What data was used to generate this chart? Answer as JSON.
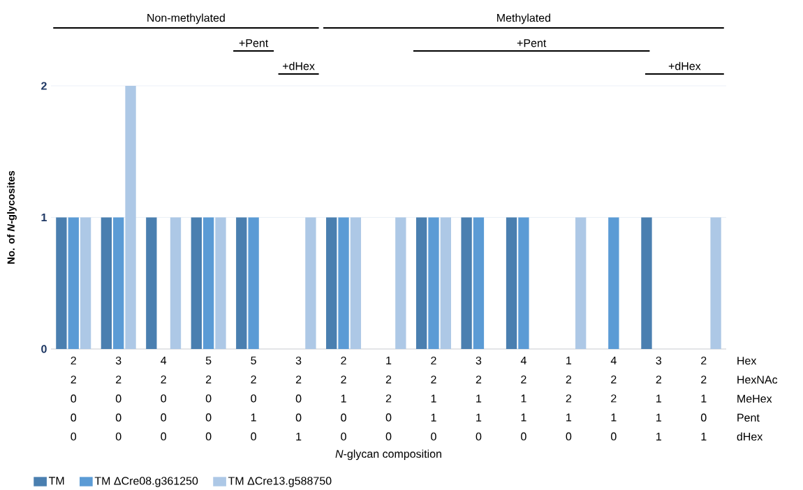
{
  "chart_data": {
    "type": "bar",
    "ylabel": "No. of *N*-glycosites",
    "categories": [
      "2 2 0 0 0",
      "3 2 0 0 0",
      "4 2 0 0 0",
      "5 2 0 0 0",
      "5 2 0 1 0",
      "3 2 0 0 1",
      "2 2 1 0 0",
      "1 2 2 0 0",
      "2 2 1 1 0",
      "3 2 1 1 0",
      "4 2 1 1 0",
      "1 2 2 1 0",
      "4 2 2 1 0",
      "3 2 1 1 1",
      "2 2 1 0 1"
    ],
    "series": [
      {
        "name": "TM",
        "color": "#4a7fb0",
        "values": [
          1,
          1,
          1,
          1,
          1,
          0,
          1,
          0,
          1,
          1,
          1,
          0,
          0,
          1,
          0
        ]
      },
      {
        "name": "TM ΔCre08.g361250",
        "color": "#5b9bd5",
        "values": [
          1,
          1,
          0,
          1,
          1,
          0,
          1,
          0,
          1,
          1,
          1,
          0,
          1,
          0,
          0
        ]
      },
      {
        "name": "TM ΔCre13.g588750",
        "color": "#adc8e6",
        "values": [
          1,
          2,
          1,
          1,
          0,
          1,
          1,
          1,
          1,
          0,
          0,
          1,
          0,
          0,
          1
        ]
      }
    ],
    "ylim": [
      0,
      2
    ],
    "yticks": [
      0,
      1,
      2
    ],
    "grid": "y",
    "legend": "bottom left",
    "annotations": [
      "Hex",
      "HexNAc",
      "MeHex",
      "Pent",
      "dHex",
      "*N*-glycan composition",
      "Non-methylated",
      "Methylated",
      "+Pent",
      "+dHex",
      "+Pent",
      "+dHex"
    ]
  }
}
